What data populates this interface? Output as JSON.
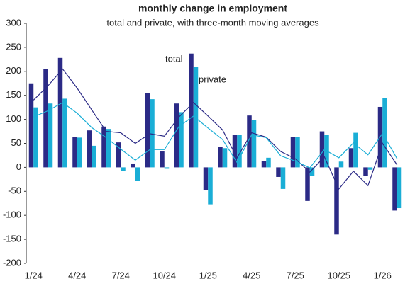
{
  "chart_data": {
    "type": "bar",
    "title": "monthly change in employment",
    "subtitle": "total and private, with three-month moving averages",
    "categories": [
      "1/24",
      null,
      null,
      "4/24",
      null,
      null,
      "7/24",
      null,
      null,
      "10/24",
      null,
      null,
      "1/25",
      null,
      null,
      "4/25",
      null,
      null,
      "7/25",
      null,
      null,
      "10/25",
      null,
      null,
      "1/26",
      null
    ],
    "series": [
      {
        "name": "total",
        "type": "bar",
        "color": "#2b2a86",
        "values": [
          175,
          205,
          228,
          63,
          77,
          85,
          52,
          8,
          155,
          33,
          133,
          237,
          -48,
          42,
          67,
          108,
          13,
          -20,
          63,
          -70,
          75,
          -140,
          40,
          -18,
          126,
          -90
        ]
      },
      {
        "name": "private",
        "type": "bar",
        "color": "#1aaed6",
        "values": [
          125,
          133,
          143,
          62,
          45,
          80,
          -8,
          -28,
          142,
          -3,
          115,
          210,
          -77,
          40,
          67,
          98,
          20,
          -45,
          63,
          -18,
          68,
          12,
          72,
          -5,
          145,
          -85
        ]
      },
      {
        "type": "line",
        "color": "#2b2a86",
        "values": [
          140,
          170,
          205,
          165,
          120,
          75,
          72,
          50,
          70,
          65,
          105,
          135,
          107,
          78,
          20,
          72,
          63,
          33,
          18,
          -10,
          22,
          -45,
          -8,
          -38,
          50,
          5
        ]
      },
      {
        "type": "line",
        "color": "#1aaed6",
        "values": [
          105,
          118,
          135,
          113,
          83,
          62,
          38,
          15,
          37,
          37,
          85,
          107,
          82,
          58,
          10,
          68,
          62,
          24,
          13,
          -1,
          37,
          20,
          51,
          26,
          71,
          18
        ]
      }
    ],
    "ylim": [
      -200,
      300
    ],
    "yticks": [
      -200,
      -150,
      -100,
      -50,
      0,
      50,
      100,
      150,
      200,
      250,
      300
    ],
    "grid": false
  }
}
